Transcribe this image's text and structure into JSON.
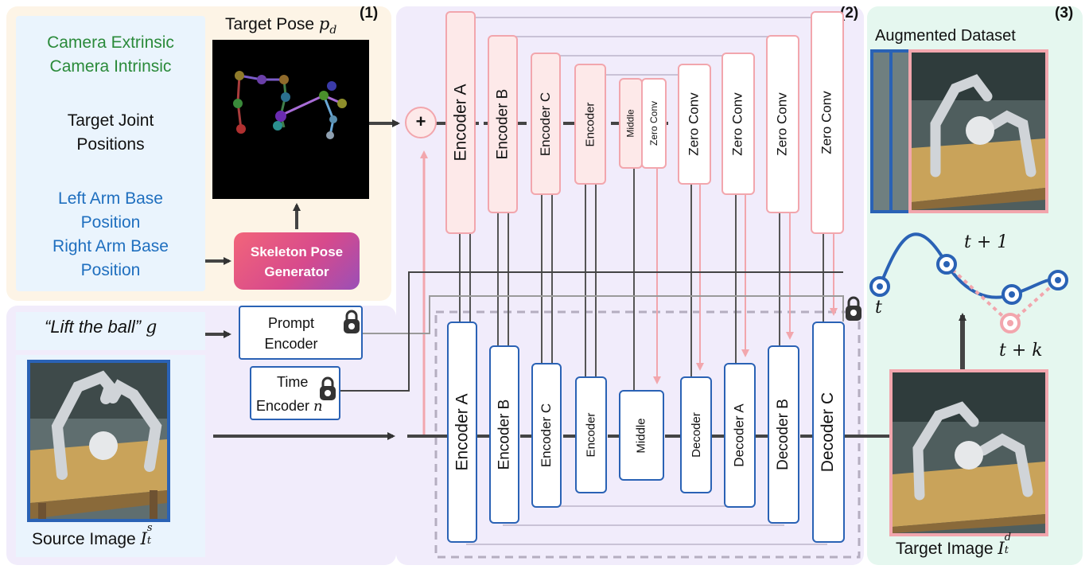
{
  "colors": {
    "panel1_bg": "#fdf4e6",
    "panel2_bg": "#f1ecfb",
    "panel3_bg": "#e5f7ef",
    "inner_panel_bg": "#eaf4fd",
    "blue": "#2a62b5",
    "pink": "#f2a6ad",
    "green_text": "#2a8a3a",
    "blue_text": "#1f6fbf"
  },
  "section1": {
    "badge": "(1)",
    "camera_extrinsic": "Camera Extrinsic",
    "camera_intrinsic": "Camera Intrinsic",
    "target_joint_line1": "Target Joint",
    "target_joint_line2": "Positions",
    "left_arm_line1": "Left Arm Base",
    "left_arm_line2": "Position",
    "right_arm_line1": "Right Arm Base",
    "right_arm_line2": "Position",
    "target_pose_label": "Target Pose ",
    "target_pose_symbol": "p",
    "target_pose_sub": "d",
    "generator_line1": "Skeleton Pose",
    "generator_line2": "Generator"
  },
  "section2": {
    "badge": "(2)",
    "plus": "+",
    "ctrl_blocks": [
      "Encoder A",
      "Encoder B",
      "Encoder C",
      "Encoder",
      "Middle",
      "Zero Conv",
      "Zero Conv",
      "Zero Conv",
      "Zero Conv",
      "Zero Conv"
    ],
    "unet_blocks": [
      "Encoder A",
      "Encoder B",
      "Encoder C",
      "Encoder",
      "Middle",
      "Decoder",
      "Decoder A",
      "Decoder B",
      "Decoder C"
    ],
    "prompt_line1": "Prompt",
    "prompt_line2": "Encoder",
    "time_line1": "Time",
    "time_line2": "Encoder ",
    "time_symbol": "n",
    "instruction": "“Lift the ball”",
    "instruction_symbol": "g",
    "source_label": "Source Image ",
    "source_symbol": "I",
    "source_sup": "s",
    "source_sub": "t"
  },
  "section3": {
    "badge": "(3)",
    "dataset_label": "Augmented Dataset",
    "t_label": "t",
    "t1_label": "t + 1",
    "tk_label": "t + k",
    "target_label": "Target Image ",
    "target_symbol": "I",
    "target_sup": "d",
    "target_sub": "t"
  }
}
